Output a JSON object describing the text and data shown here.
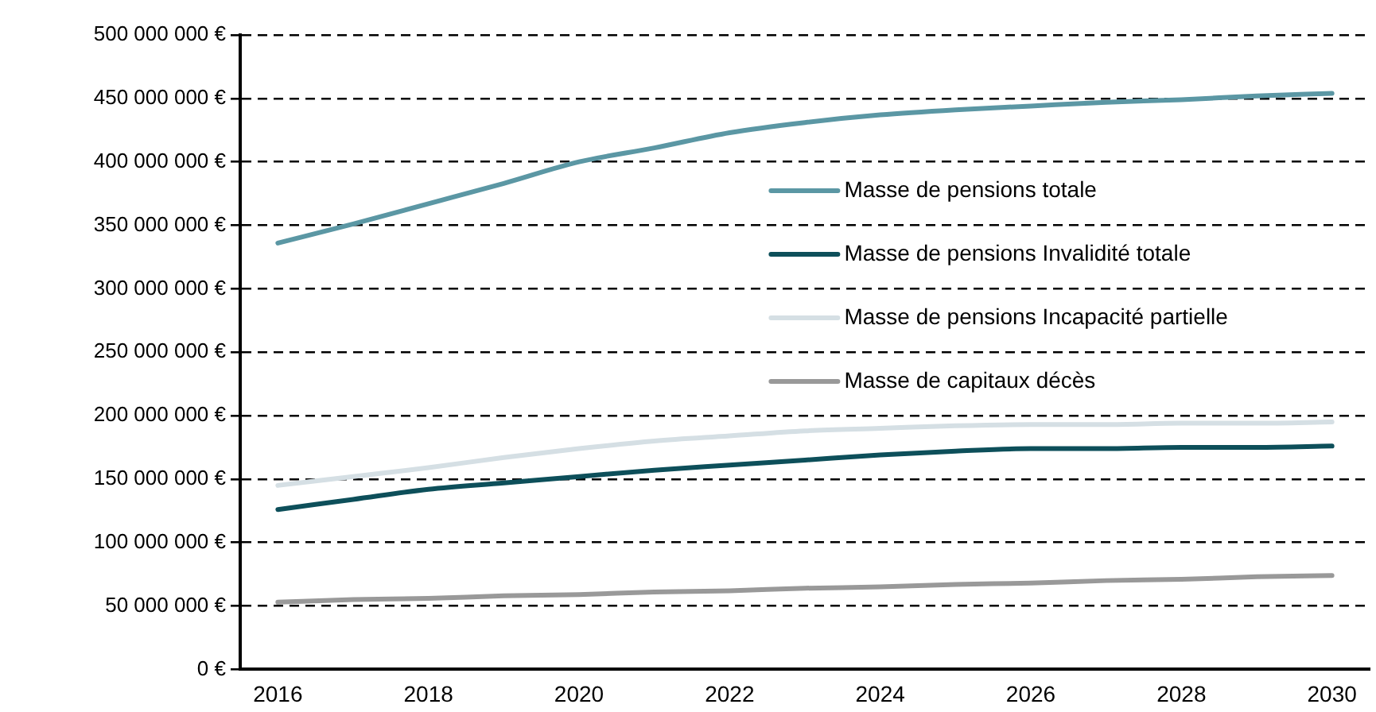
{
  "chart_data": {
    "type": "line",
    "categories": [
      "2016",
      null,
      "2018",
      null,
      "2020",
      null,
      "2022",
      null,
      "2024",
      null,
      "2026",
      null,
      "2028",
      null,
      "2030"
    ],
    "series": [
      {
        "name": "Masse de pensions totale",
        "color": "#5b97a4",
        "values": [
          336000000,
          351000000,
          367000000,
          383000000,
          400000000,
          411000000,
          423000000,
          431000000,
          437000000,
          441000000,
          444000000,
          447000000,
          449000000,
          452000000,
          454000000
        ]
      },
      {
        "name": "Masse de pensions Invalidité totale",
        "color": "#0d4f5a",
        "values": [
          126000000,
          134000000,
          142000000,
          147000000,
          152000000,
          157000000,
          161000000,
          165000000,
          169000000,
          172000000,
          174000000,
          174000000,
          175000000,
          175000000,
          176000000
        ]
      },
      {
        "name": "Masse de pensions Incapacité partielle",
        "color": "#d5dfe4",
        "values": [
          145000000,
          152000000,
          159000000,
          167000000,
          174000000,
          180000000,
          184000000,
          188000000,
          190000000,
          192000000,
          193000000,
          193000000,
          194000000,
          194000000,
          195000000
        ]
      },
      {
        "name": "Masse de capitaux décès",
        "color": "#999999",
        "values": [
          53000000,
          55000000,
          56000000,
          58000000,
          59000000,
          61000000,
          62000000,
          64000000,
          65000000,
          67000000,
          68000000,
          70000000,
          71000000,
          73000000,
          74000000
        ]
      }
    ],
    "ylim": [
      0,
      500000000
    ],
    "yticks": [
      {
        "value": 0,
        "label": "0 €"
      },
      {
        "value": 50000000,
        "label": "50 000 000 €"
      },
      {
        "value": 100000000,
        "label": "100 000 000 €"
      },
      {
        "value": 150000000,
        "label": "150 000 000 €"
      },
      {
        "value": 200000000,
        "label": "200 000 000 €"
      },
      {
        "value": 250000000,
        "label": "250 000 000 €"
      },
      {
        "value": 300000000,
        "label": "300 000 000 €"
      },
      {
        "value": 350000000,
        "label": "350 000 000 €"
      },
      {
        "value": 400000000,
        "label": "400 000 000 €"
      },
      {
        "value": 450000000,
        "label": "450 000 000 €"
      },
      {
        "value": 500000000,
        "label": "500 000 000 €"
      }
    ],
    "grid": "y",
    "legend": "right",
    "marker": "none",
    "line_style": "solid"
  }
}
